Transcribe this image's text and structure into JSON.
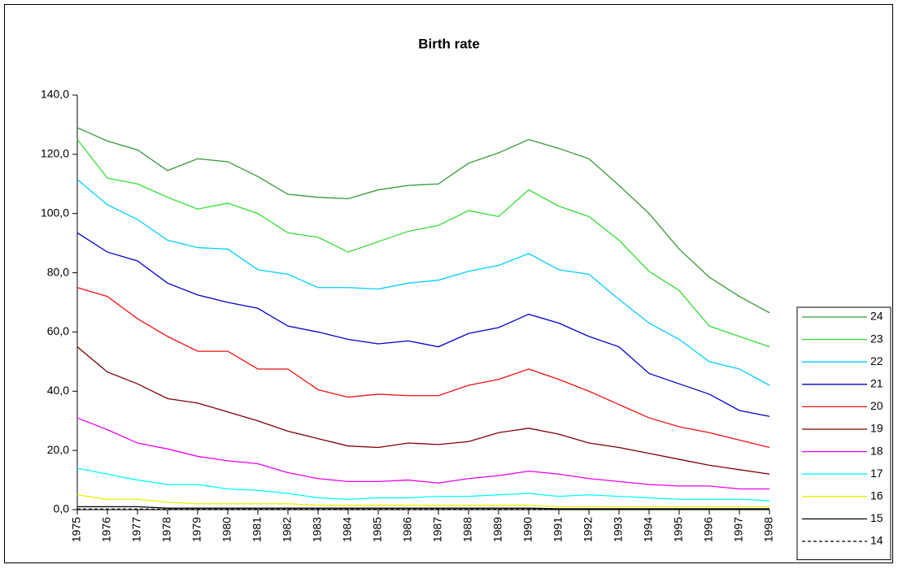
{
  "chart_data": {
    "type": "line",
    "title": "Birth rate",
    "categories": [
      "1975",
      "1976",
      "1977",
      "1978",
      "1979",
      "1980",
      "1981",
      "1982",
      "1983",
      "1984",
      "1985",
      "1986",
      "1987",
      "1988",
      "1989",
      "1990",
      "1991",
      "1992",
      "1993",
      "1994",
      "1995",
      "1996",
      "1997",
      "1998"
    ],
    "ylim": [
      0,
      140
    ],
    "yticks": [
      {
        "value": 0,
        "label": "0,0"
      },
      {
        "value": 20,
        "label": "20,0"
      },
      {
        "value": 40,
        "label": "40,0"
      },
      {
        "value": 60,
        "label": "60,0"
      },
      {
        "value": 80,
        "label": "80,0"
      },
      {
        "value": 100,
        "label": "100,0"
      },
      {
        "value": 120,
        "label": "120,0"
      },
      {
        "value": 140,
        "label": "140,0"
      }
    ],
    "grid": false,
    "legend": "right",
    "series": [
      {
        "name": "24",
        "color": "#339933",
        "values": [
          129,
          124.5,
          121.5,
          114.5,
          118.5,
          117.5,
          112.5,
          106.5,
          105.5,
          105,
          108,
          109.5,
          110,
          117,
          120.5,
          125,
          122,
          118.5,
          109.5,
          100,
          88,
          78.5,
          72,
          66.5
        ]
      },
      {
        "name": "23",
        "color": "#33dd33",
        "values": [
          125,
          112,
          110,
          105.5,
          101.5,
          103.5,
          100,
          93.5,
          92,
          87,
          90.5,
          94,
          96,
          101,
          99,
          108,
          102.5,
          99,
          91,
          80.5,
          74,
          62,
          58.5,
          55
        ]
      },
      {
        "name": "22",
        "color": "#00ccff",
        "values": [
          111.5,
          103,
          98,
          91,
          88.5,
          88,
          81,
          79.5,
          75,
          75,
          74.5,
          76.5,
          77.5,
          80.5,
          82.5,
          86.5,
          81,
          79.5,
          71,
          63,
          57.5,
          50,
          47.5,
          42
        ]
      },
      {
        "name": "21",
        "color": "#0000cc",
        "values": [
          93.5,
          87,
          84,
          76.5,
          72.5,
          70,
          68,
          62,
          60,
          57.5,
          56,
          57,
          55,
          59.5,
          61.5,
          66,
          63,
          58.5,
          55,
          46,
          42.5,
          39,
          33.5,
          31.5
        ]
      },
      {
        "name": "20",
        "color": "#ee1111",
        "values": [
          75,
          72,
          64.5,
          58.5,
          53.5,
          53.5,
          47.5,
          47.5,
          40.5,
          38,
          39,
          38.5,
          38.5,
          42,
          44,
          47.5,
          44,
          40,
          35.5,
          31,
          28,
          26,
          23.5,
          21
        ]
      },
      {
        "name": "19",
        "color": "#800000",
        "values": [
          55,
          46.5,
          42.5,
          37.5,
          36,
          33,
          30,
          26.5,
          24,
          21.5,
          21,
          22.5,
          22,
          23,
          26,
          27.5,
          25.5,
          22.5,
          21,
          19,
          17,
          15,
          13.5,
          12
        ]
      },
      {
        "name": "18",
        "color": "#ee00ee",
        "values": [
          31,
          27,
          22.5,
          20.5,
          18,
          16.5,
          15.5,
          12.5,
          10.5,
          9.5,
          9.5,
          10,
          9,
          10.5,
          11.5,
          13,
          12,
          10.5,
          9.5,
          8.5,
          8,
          8,
          7,
          7
        ]
      },
      {
        "name": "17",
        "color": "#00ffff",
        "values": [
          14,
          12,
          10,
          8.5,
          8.5,
          7,
          6.5,
          5.5,
          4,
          3.5,
          4,
          4,
          4.5,
          4.5,
          5,
          5.5,
          4.5,
          5,
          4.5,
          4,
          3.5,
          3.5,
          3.5,
          3
        ]
      },
      {
        "name": "16",
        "color": "#eeee00",
        "values": [
          5,
          3.5,
          3.5,
          2.5,
          2,
          2,
          2,
          2,
          1.5,
          1.5,
          1.5,
          1.5,
          1.5,
          1.5,
          1.5,
          1.5,
          1,
          1,
          1,
          1,
          1,
          1,
          1,
          1
        ]
      },
      {
        "name": "15",
        "color": "#000000",
        "values": [
          1,
          1,
          1,
          0.5,
          0.5,
          0.5,
          0.5,
          0.5,
          0.5,
          0.5,
          0.5,
          0.5,
          0.5,
          0.5,
          0.5,
          0.5,
          0.3,
          0.3,
          0.3,
          0.3,
          0.3,
          0.3,
          0.3,
          0.3
        ]
      },
      {
        "name": "14",
        "color": "#000000",
        "dashed": true,
        "values": [
          0.2,
          0.2,
          0.2,
          0.1,
          0.1,
          0.1,
          0.1,
          0.1,
          0.1,
          0.1,
          0.1,
          0.1,
          0.1,
          0.1,
          0.1,
          0.1,
          0.1,
          0.1,
          0.1,
          0.1,
          0.1,
          0.1,
          0.1,
          0.1
        ]
      }
    ]
  }
}
